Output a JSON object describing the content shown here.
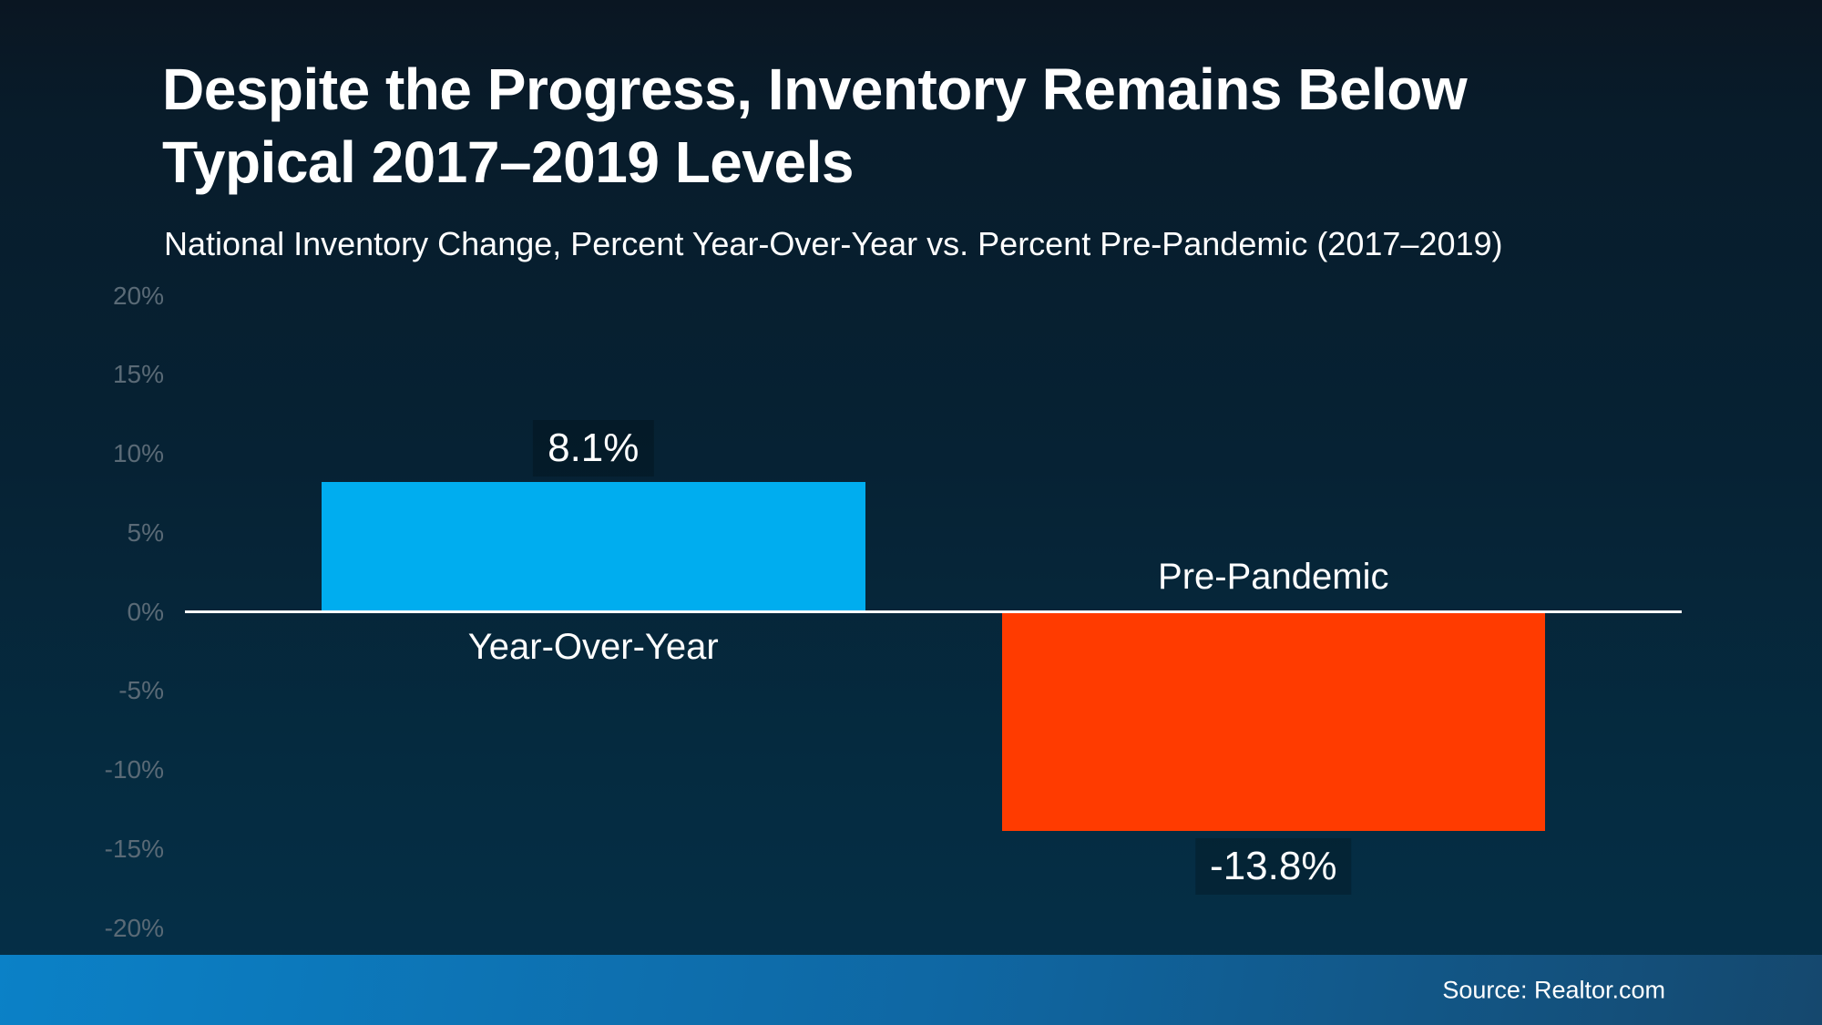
{
  "slide": {
    "title_line1": "Despite the Progress, Inventory Remains Below",
    "title_line2": "Typical 2017–2019 Levels",
    "subtitle": "National Inventory Change, Percent Year-Over-Year vs. Percent Pre-Pandemic (2017–2019)",
    "source": "Source: Realtor.com"
  },
  "colors": {
    "background_top": "#0A1622",
    "background_mid": "#062234",
    "background_bottom": "#053049",
    "footer_left": "#0B81C7",
    "footer_right": "#15486E",
    "axis_label": "#5A6A76",
    "zero_line": "#FFFFFF",
    "text": "#FFFFFF",
    "value_label_bg": "rgba(0,0,0,0.2)",
    "positive_bar": "#00ADEF",
    "negative_bar": "#FF3B00"
  },
  "chart_data": {
    "type": "bar",
    "title": "Despite the Progress, Inventory Remains Below Typical 2017–2019 Levels",
    "subtitle": "National Inventory Change, Percent Year-Over-Year vs. Percent Pre-Pandemic (2017–2019)",
    "categories": [
      "Year-Over-Year",
      "Pre-Pandemic"
    ],
    "values": [
      8.1,
      -13.8
    ],
    "value_labels": [
      "8.1%",
      "-13.8%"
    ],
    "series_colors": [
      "#00ADEF",
      "#FF3B00"
    ],
    "xlabel": "",
    "ylabel": "",
    "ylim": [
      -20,
      20
    ],
    "yticks": [
      20,
      15,
      10,
      5,
      0,
      -5,
      -10,
      -15,
      -20
    ],
    "ytick_labels": [
      "20%",
      "15%",
      "10%",
      "5%",
      "0%",
      "-5%",
      "-10%",
      "-15%",
      "-20%"
    ],
    "grid": false,
    "legend": "none",
    "source": "Source: Realtor.com"
  }
}
